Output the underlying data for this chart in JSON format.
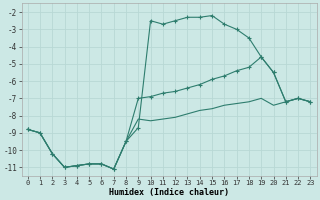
{
  "xlabel": "Humidex (Indice chaleur)",
  "background_color": "#cce8e5",
  "grid_color": "#b8d8d5",
  "line_color": "#2e7d6e",
  "xlim": [
    -0.5,
    23.5
  ],
  "ylim": [
    -11.5,
    -1.5
  ],
  "xticks": [
    0,
    1,
    2,
    3,
    4,
    5,
    6,
    7,
    8,
    9,
    10,
    11,
    12,
    13,
    14,
    15,
    16,
    17,
    18,
    19,
    20,
    21,
    22,
    23
  ],
  "yticks": [
    -2,
    -3,
    -4,
    -5,
    -6,
    -7,
    -8,
    -9,
    -10,
    -11
  ],
  "series1_x": [
    0,
    1,
    2,
    3,
    4,
    5,
    6,
    7,
    8,
    9,
    10,
    11,
    12,
    13,
    14,
    15,
    16,
    17,
    18,
    19,
    20,
    21,
    22,
    23
  ],
  "series1_y": [
    -8.8,
    -9.0,
    -10.2,
    -11.0,
    -10.9,
    -10.8,
    -10.8,
    -11.1,
    -9.5,
    -8.7,
    -2.5,
    -2.7,
    -2.5,
    -2.3,
    -2.3,
    -2.2,
    -2.7,
    -3.0,
    -3.5,
    -4.6,
    -5.5,
    -7.2,
    -7.0,
    -7.2
  ],
  "series2_x": [
    0,
    1,
    2,
    3,
    4,
    5,
    6,
    7,
    8,
    9,
    10,
    11,
    12,
    13,
    14,
    15,
    16,
    17,
    18,
    19,
    20,
    21,
    22,
    23
  ],
  "series2_y": [
    -8.8,
    -9.0,
    -10.2,
    -11.0,
    -10.9,
    -10.8,
    -10.8,
    -11.1,
    -9.5,
    -7.0,
    -6.9,
    -6.7,
    -6.6,
    -6.4,
    -6.2,
    -5.9,
    -5.7,
    -5.4,
    -5.2,
    -4.6,
    -5.5,
    -7.2,
    -7.0,
    -7.2
  ],
  "series3_x": [
    0,
    1,
    2,
    3,
    4,
    5,
    6,
    7,
    8,
    9,
    10,
    11,
    12,
    13,
    14,
    15,
    16,
    17,
    18,
    19,
    20,
    21,
    22,
    23
  ],
  "series3_y": [
    -8.8,
    -9.0,
    -10.2,
    -11.0,
    -10.9,
    -10.8,
    -10.8,
    -11.1,
    -9.5,
    -8.2,
    -8.3,
    -8.2,
    -8.1,
    -7.9,
    -7.7,
    -7.6,
    -7.4,
    -7.3,
    -7.2,
    -7.0,
    -7.4,
    -7.2,
    -7.0,
    -7.2
  ]
}
